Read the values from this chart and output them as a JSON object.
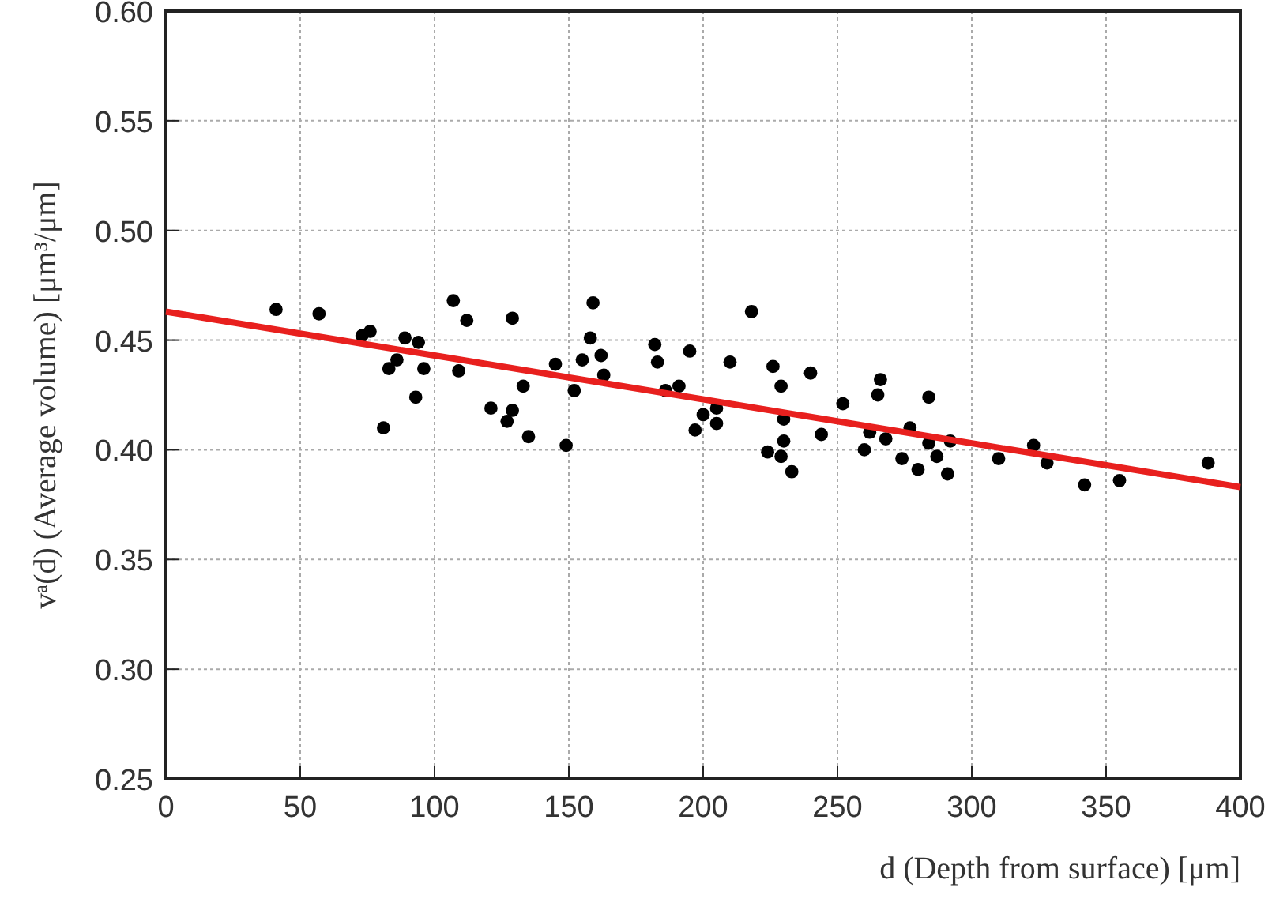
{
  "chart_data": {
    "type": "scatter",
    "xlabel": "d (Depth from surface) [μm]",
    "ylabel": "vᵃ(d) (Average volume) [μm³/μm]",
    "xlim": [
      0,
      400
    ],
    "xticks": [
      0,
      50,
      100,
      150,
      200,
      250,
      300,
      350,
      400
    ],
    "ylim": [
      0.25,
      0.6
    ],
    "yticks": [
      {
        "value": 0.25,
        "label": "0.25"
      },
      {
        "value": 0.3,
        "label": "0.30"
      },
      {
        "value": 0.35,
        "label": "0.35"
      },
      {
        "value": 0.4,
        "label": "0.40"
      },
      {
        "value": 0.45,
        "label": "0.45"
      },
      {
        "value": 0.5,
        "label": "0.50"
      },
      {
        "value": 0.55,
        "label": "0.55"
      },
      {
        "value": 0.6,
        "label": "0.60"
      }
    ],
    "grid": true,
    "marker": "circle",
    "series": [
      {
        "type": "scatter",
        "color": "#000000",
        "x": [
          41,
          57,
          73,
          76,
          81,
          83,
          86,
          89,
          94,
          96,
          93,
          107,
          112,
          109,
          121,
          127,
          129,
          129,
          133,
          135,
          145,
          149,
          152,
          155,
          158,
          159,
          162,
          163,
          182,
          183,
          186,
          191,
          195,
          197,
          200,
          205,
          205,
          210,
          218,
          226,
          224,
          229,
          230,
          230,
          229,
          233,
          240,
          244,
          252,
          260,
          262,
          265,
          266,
          268,
          274,
          280,
          277,
          284,
          284,
          287,
          291,
          292,
          310,
          323,
          328,
          342,
          355,
          388
        ],
        "values": [
          0.464,
          0.462,
          0.452,
          0.454,
          0.41,
          0.437,
          0.441,
          0.451,
          0.449,
          0.437,
          0.424,
          0.468,
          0.459,
          0.436,
          0.419,
          0.413,
          0.418,
          0.46,
          0.429,
          0.406,
          0.439,
          0.402,
          0.427,
          0.441,
          0.451,
          0.467,
          0.443,
          0.434,
          0.448,
          0.44,
          0.427,
          0.429,
          0.445,
          0.409,
          0.416,
          0.419,
          0.412,
          0.44,
          0.463,
          0.438,
          0.399,
          0.397,
          0.404,
          0.414,
          0.429,
          0.39,
          0.435,
          0.407,
          0.421,
          0.4,
          0.408,
          0.425,
          0.432,
          0.405,
          0.396,
          0.391,
          0.41,
          0.424,
          0.403,
          0.397,
          0.389,
          0.404,
          0.396,
          0.402,
          0.394,
          0.384,
          0.386,
          0.394
        ]
      },
      {
        "type": "line",
        "color": "#e8201e",
        "marker": "none",
        "x": [
          0,
          400
        ],
        "values": [
          0.463,
          0.383
        ]
      }
    ]
  }
}
